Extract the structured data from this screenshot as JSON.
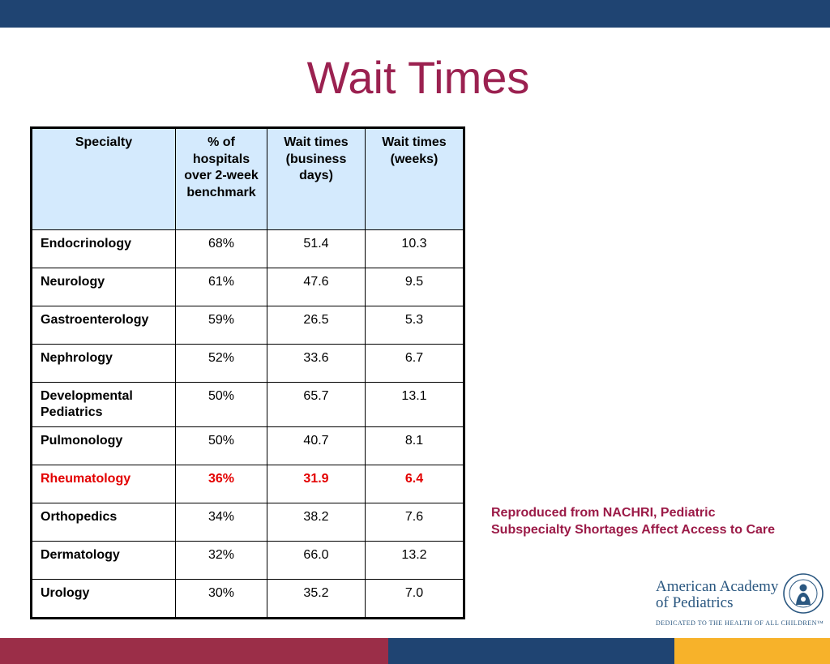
{
  "slide": {
    "title": "Wait Times",
    "source_note": "Reproduced from NACHRI, Pediatric Subspecialty Shortages Affect Access to Care",
    "colors": {
      "top_bar": "#1f4472",
      "title": "#9b2150",
      "header_fill": "#d4eafd",
      "highlight_text": "#e30000",
      "source_text": "#9b1a47",
      "bottom_bar": [
        "#9b2e48",
        "#1f4472",
        "#f7b22a"
      ]
    }
  },
  "table": {
    "headers": [
      "Specialty",
      "% of hospitals over 2-week benchmark",
      "Wait times (business days)",
      "Wait times (weeks)"
    ],
    "rows": [
      {
        "specialty": "Endocrinology",
        "pct": "68%",
        "days": "51.4",
        "weeks": "10.3"
      },
      {
        "specialty": "Neurology",
        "pct": "61%",
        "days": "47.6",
        "weeks": "9.5"
      },
      {
        "specialty": "Gastroenterology",
        "pct": "59%",
        "days": "26.5",
        "weeks": "5.3"
      },
      {
        "specialty": "Nephrology",
        "pct": "52%",
        "days": "33.6",
        "weeks": "6.7"
      },
      {
        "specialty": "Developmental Pediatrics",
        "pct": "50%",
        "days": "65.7",
        "weeks": "13.1"
      },
      {
        "specialty": "Pulmonology",
        "pct": "50%",
        "days": "40.7",
        "weeks": "8.1"
      },
      {
        "specialty": "Rheumatology",
        "pct": "36%",
        "days": "31.9",
        "weeks": "6.4",
        "highlighted": true
      },
      {
        "specialty": "Orthopedics",
        "pct": "34%",
        "days": "38.2",
        "weeks": "7.6"
      },
      {
        "specialty": "Dermatology",
        "pct": "32%",
        "days": "66.0",
        "weeks": "13.2"
      },
      {
        "specialty": "Urology",
        "pct": "30%",
        "days": "35.2",
        "weeks": "7.0"
      }
    ]
  },
  "logo": {
    "name_line1": "American Academy",
    "name_line2": "of Pediatrics",
    "tagline": "DEDICATED TO THE HEALTH OF ALL CHILDREN™"
  }
}
